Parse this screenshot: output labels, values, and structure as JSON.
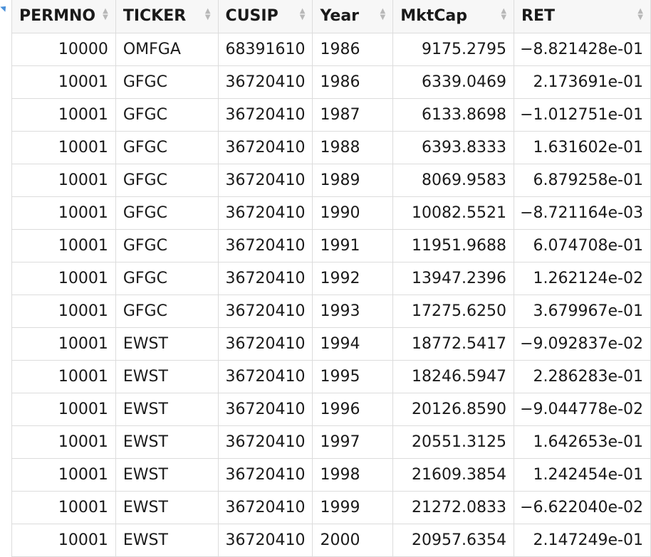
{
  "columns": [
    "PERMNO",
    "TICKER",
    "CUSIP",
    "Year",
    "MktCap",
    "RET"
  ],
  "rows": [
    [
      "10000",
      "OMFGA",
      "68391610",
      "1986",
      "9175.2795",
      "−8.821428e-01"
    ],
    [
      "10001",
      "GFGC",
      "36720410",
      "1986",
      "6339.0469",
      "2.173691e-01"
    ],
    [
      "10001",
      "GFGC",
      "36720410",
      "1987",
      "6133.8698",
      "−1.012751e-01"
    ],
    [
      "10001",
      "GFGC",
      "36720410",
      "1988",
      "6393.8333",
      "1.631602e-01"
    ],
    [
      "10001",
      "GFGC",
      "36720410",
      "1989",
      "8069.9583",
      "6.879258e-01"
    ],
    [
      "10001",
      "GFGC",
      "36720410",
      "1990",
      "10082.5521",
      "−8.721164e-03"
    ],
    [
      "10001",
      "GFGC",
      "36720410",
      "1991",
      "11951.9688",
      "6.074708e-01"
    ],
    [
      "10001",
      "GFGC",
      "36720410",
      "1992",
      "13947.2396",
      "1.262124e-02"
    ],
    [
      "10001",
      "GFGC",
      "36720410",
      "1993",
      "17275.6250",
      "3.679967e-01"
    ],
    [
      "10001",
      "EWST",
      "36720410",
      "1994",
      "18772.5417",
      "−9.092837e-02"
    ],
    [
      "10001",
      "EWST",
      "36720410",
      "1995",
      "18246.5947",
      "2.286283e-01"
    ],
    [
      "10001",
      "EWST",
      "36720410",
      "1996",
      "20126.8590",
      "−9.044778e-02"
    ],
    [
      "10001",
      "EWST",
      "36720410",
      "1997",
      "20551.3125",
      "1.642653e-01"
    ],
    [
      "10001",
      "EWST",
      "36720410",
      "1998",
      "21609.3854",
      "1.242454e-01"
    ],
    [
      "10001",
      "EWST",
      "36720410",
      "1999",
      "21272.0833",
      "−6.622040e-02"
    ],
    [
      "10001",
      "EWST",
      "36720410",
      "2000",
      "20957.6354",
      "2.147249e-01"
    ]
  ]
}
